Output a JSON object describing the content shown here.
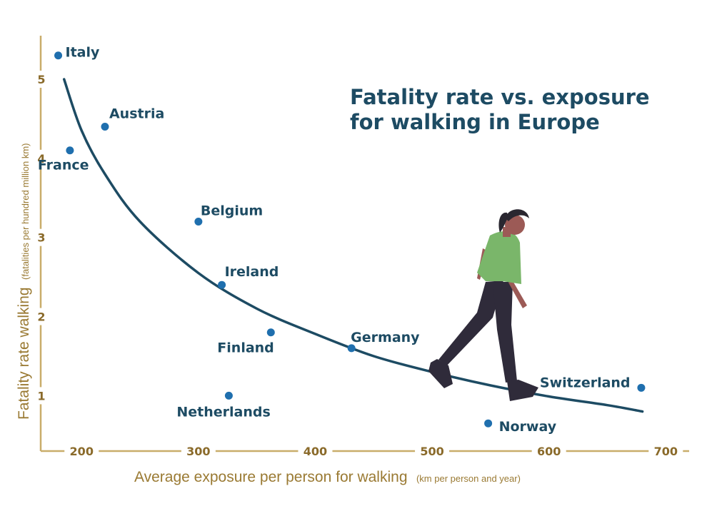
{
  "chart_data": {
    "type": "scatter",
    "title_lines": [
      "Fatality rate vs. exposure",
      "for walking in Europe"
    ],
    "xlabel": "Average exposure per person for walking",
    "xlabel_unit": "(km per person and year)",
    "ylabel": "Fatality rate walking",
    "ylabel_unit": "(fatalities per hundred million km)",
    "xlim": [
      165,
      720
    ],
    "ylim": [
      0.3,
      5.55
    ],
    "x_ticks": [
      "200",
      "300",
      "400",
      "500",
      "600",
      "700"
    ],
    "y_ticks": [
      "1",
      "2",
      "3",
      "4",
      "5"
    ],
    "points": [
      {
        "label": "Italy",
        "x": 180,
        "y": 5.3
      },
      {
        "label": "Austria",
        "x": 220,
        "y": 4.4
      },
      {
        "label": "France",
        "x": 190,
        "y": 4.1
      },
      {
        "label": "Belgium",
        "x": 300,
        "y": 3.2
      },
      {
        "label": "Ireland",
        "x": 320,
        "y": 2.4
      },
      {
        "label": "Finland",
        "x": 362,
        "y": 1.8
      },
      {
        "label": "Netherlands",
        "x": 326,
        "y": 1.0
      },
      {
        "label": "Germany",
        "x": 431,
        "y": 1.6
      },
      {
        "label": "Norway",
        "x": 548,
        "y": 0.65
      },
      {
        "label": "Switzerland",
        "x": 679,
        "y": 1.1
      }
    ],
    "trend_line": {
      "description": "fitted decreasing curve",
      "x": [
        185,
        200,
        220,
        250,
        300,
        350,
        400,
        450,
        500,
        550,
        600,
        650,
        680
      ],
      "y": [
        5.0,
        4.35,
        3.8,
        3.2,
        2.55,
        2.1,
        1.78,
        1.5,
        1.3,
        1.13,
        0.99,
        0.88,
        0.8
      ]
    },
    "grid": false,
    "colors": {
      "points": "#1f6fae",
      "trend_line": "#1d4b63",
      "labels": "#1d4b63",
      "axes": "#c9ad6a",
      "axis_text": "#9a7a33",
      "tick_text": "#8a6a2a"
    }
  },
  "illustration": {
    "subject": "woman-walking-illustration",
    "colors": {
      "shirt": "#7ab66a",
      "pants": "#2f2b3a",
      "skin": "#9c5a56",
      "hair": "#2a2730",
      "shoes": "#2f2b3a"
    }
  }
}
